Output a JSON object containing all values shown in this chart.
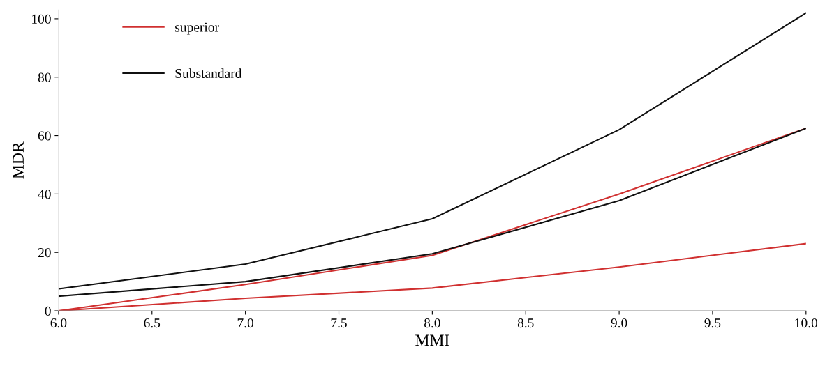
{
  "chart_data": {
    "type": "line",
    "xlabel": "MMI",
    "ylabel": "MDR",
    "x": [
      6.0,
      7.0,
      8.0,
      9.0,
      10.0
    ],
    "series": [
      {
        "name": "superior",
        "color": "#d03030",
        "values": [
          0,
          9,
          19,
          40,
          62.5
        ]
      },
      {
        "color": "#d03030",
        "values": [
          0,
          4.3,
          7.8,
          15,
          23
        ]
      },
      {
        "name": "Substandard",
        "color": "#101010",
        "values": [
          7.5,
          16,
          31.5,
          62,
          102
        ]
      },
      {
        "color": "#101010",
        "values": [
          5,
          10,
          19.5,
          37.7,
          62.5
        ]
      }
    ],
    "xlim": [
      6.0,
      10.0
    ],
    "xticks": [
      {
        "value": 6.0,
        "label": "6.0"
      },
      {
        "value": 6.5,
        "label": "6.5"
      },
      {
        "value": 7.0,
        "label": "7.0"
      },
      {
        "value": 7.5,
        "label": "7.5"
      },
      {
        "value": 8.0,
        "label": "8.0"
      },
      {
        "value": 8.5,
        "label": "8.5"
      },
      {
        "value": 9.0,
        "label": "9.0"
      },
      {
        "value": 9.5,
        "label": "9.5"
      },
      {
        "value": 10.0,
        "label": "10.0"
      }
    ],
    "ylim": [
      0,
      103
    ],
    "yticks": [
      0,
      20,
      40,
      60,
      80,
      100
    ],
    "grid": false,
    "legend": "top left",
    "line_style": "solid"
  }
}
